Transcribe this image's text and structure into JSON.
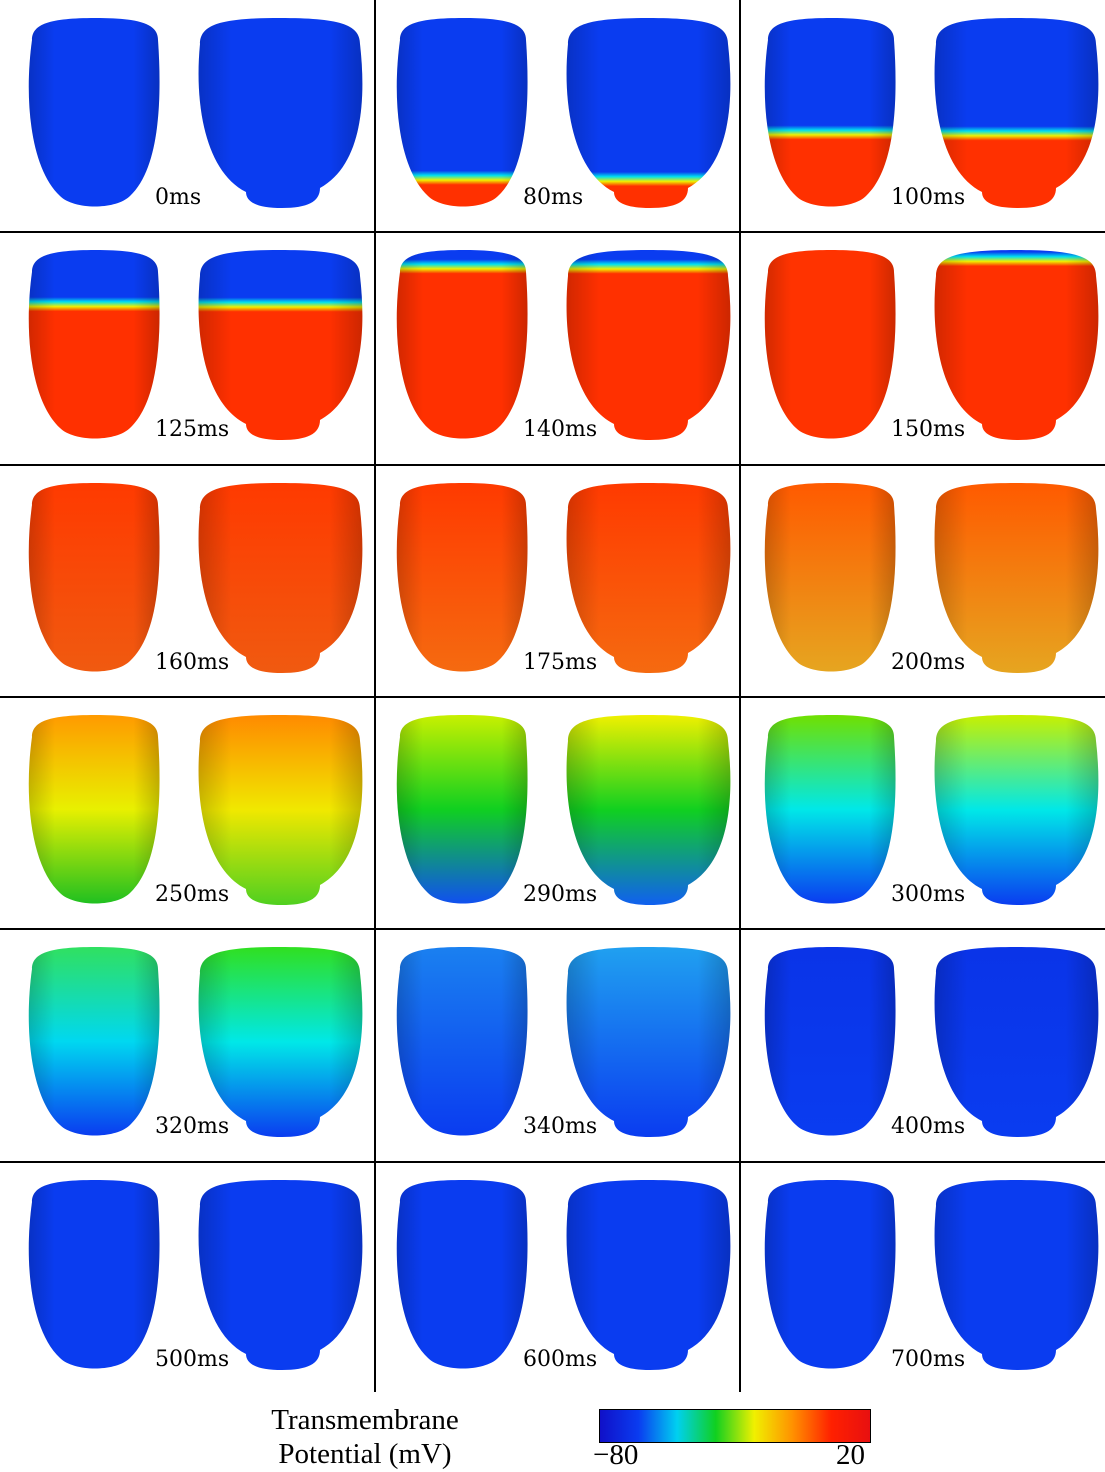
{
  "panels": [
    {
      "label": "0ms",
      "left": {
        "top": "#0a3cf0",
        "bottom": "#0a3cf0"
      },
      "right": {
        "top": "#0a3cf0",
        "bottom": "#0a3cf0"
      },
      "front": null
    },
    {
      "label": "80ms",
      "left": {
        "top": "#0a3cf0",
        "bottom": "#0a3cf0"
      },
      "right": {
        "top": "#0a3cf0",
        "bottom": "#0a3cf0"
      },
      "front": 0.86
    },
    {
      "label": "100ms",
      "left": {
        "top": "#0a3cf0",
        "bottom": "#0a3cf0"
      },
      "right": {
        "top": "#0a3cf0",
        "bottom": "#0a3cf0"
      },
      "front": 0.62
    },
    {
      "label": "125ms",
      "left": {
        "top": "#0a3cf0",
        "bottom": "#0a3cf0"
      },
      "right": {
        "top": "#0a3cf0",
        "bottom": "#0a3cf0"
      },
      "front": 0.3
    },
    {
      "label": "140ms",
      "left": {
        "top": "#0a3cf0",
        "bottom": "#0a3cf0"
      },
      "right": {
        "top": "#0a3cf0",
        "bottom": "#0a3cf0"
      },
      "front": 0.1
    },
    {
      "label": "150ms",
      "left": {
        "top": "#ff3300",
        "bottom": "#ff3300"
      },
      "right": {
        "top": "#0a3cf0",
        "bottom": "#0a3cf0"
      },
      "front": 0.06
    },
    {
      "label": "160ms",
      "left": {
        "top": "#ff3a00",
        "bottom": "#f05a10"
      },
      "right": {
        "top": "#ff3a00",
        "bottom": "#f05a10"
      },
      "front": null
    },
    {
      "label": "175ms",
      "left": {
        "top": "#ff3a00",
        "bottom": "#f56a10"
      },
      "right": {
        "top": "#ff3a00",
        "bottom": "#f56a10"
      },
      "front": null
    },
    {
      "label": "200ms",
      "left": {
        "top": "#ff5a00",
        "bottom": "#e6a520"
      },
      "right": {
        "top": "#ff5a00",
        "bottom": "#e6a520"
      },
      "front": null
    },
    {
      "label": "250ms",
      "left": {
        "top": "#ff9a00",
        "mid": "#e8f000",
        "bottom": "#20c020"
      },
      "right": {
        "top": "#ff8a00",
        "mid": "#f0e800",
        "bottom": "#50d020"
      },
      "front": null
    },
    {
      "label": "290ms",
      "left": {
        "top": "#c8f000",
        "mid": "#10d020",
        "bottom": "#1050f0"
      },
      "right": {
        "top": "#f0f000",
        "mid": "#10d020",
        "bottom": "#1060f0"
      },
      "front": null
    },
    {
      "label": "300ms",
      "left": {
        "top": "#70e000",
        "mid": "#00e8e8",
        "bottom": "#0a3cf0"
      },
      "right": {
        "top": "#c8f000",
        "mid": "#00e8e8",
        "bottom": "#0a3cf0"
      },
      "front": null
    },
    {
      "label": "320ms",
      "left": {
        "top": "#30e060",
        "mid": "#00d8f0",
        "bottom": "#0a3cf0"
      },
      "right": {
        "top": "#30e020",
        "mid": "#00e8e8",
        "bottom": "#0a3cf0"
      },
      "front": null
    },
    {
      "label": "340ms",
      "left": {
        "top": "#1a80f0",
        "bottom": "#0a3cf0"
      },
      "right": {
        "top": "#20a0f0",
        "bottom": "#0a3cf0"
      },
      "front": null
    },
    {
      "label": "400ms",
      "left": {
        "top": "#0a34e8",
        "bottom": "#0a3cf0"
      },
      "right": {
        "top": "#0a34e8",
        "bottom": "#0a3cf0"
      },
      "front": null
    },
    {
      "label": "500ms",
      "left": {
        "top": "#0a3cf0",
        "bottom": "#0a3cf0"
      },
      "right": {
        "top": "#0a3cf0",
        "bottom": "#0a3cf0"
      },
      "front": null
    },
    {
      "label": "600ms",
      "left": {
        "top": "#0a3cf0",
        "bottom": "#0a3cf0"
      },
      "right": {
        "top": "#0a3cf0",
        "bottom": "#0a3cf0"
      },
      "front": null
    },
    {
      "label": "700ms",
      "left": {
        "top": "#0a3cf0",
        "bottom": "#0a3cf0"
      },
      "right": {
        "top": "#0a3cf0",
        "bottom": "#0a3cf0"
      },
      "front": null
    }
  ],
  "legend": {
    "title_line1": "Transmembrane",
    "title_line2": "Potential (mV)",
    "min_label": "−80",
    "max_label": "20",
    "colormap": [
      "#1010c8",
      "#0a3cf0",
      "#00d0f0",
      "#10d020",
      "#f0f000",
      "#ff9000",
      "#ff2000",
      "#e81010"
    ]
  }
}
